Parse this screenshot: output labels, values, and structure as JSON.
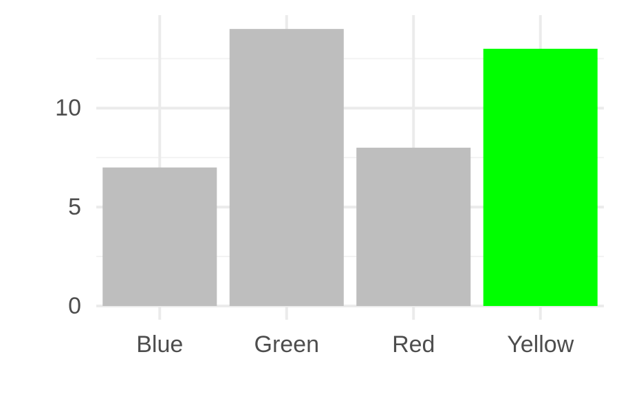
{
  "chart_data": {
    "type": "bar",
    "title": "",
    "xlabel": "",
    "ylabel": "",
    "categories": [
      "Blue",
      "Green",
      "Red",
      "Yellow"
    ],
    "values": [
      7,
      14,
      8,
      13
    ],
    "ylim": [
      0,
      14.7
    ],
    "y_ticks": [
      0,
      5,
      10
    ],
    "y_minor_ticks": [
      2.5,
      7.5,
      12.5
    ],
    "grid": true,
    "legend": "none",
    "colors": {
      "default_bar": "#bebebe",
      "highlight_bar": "#00ff00",
      "highlight_category": "Yellow",
      "grid_major": "#ebebeb",
      "grid_minor": "#f3f3f3",
      "axis_text": "#4d4d4d",
      "background": "#ffffff"
    }
  }
}
